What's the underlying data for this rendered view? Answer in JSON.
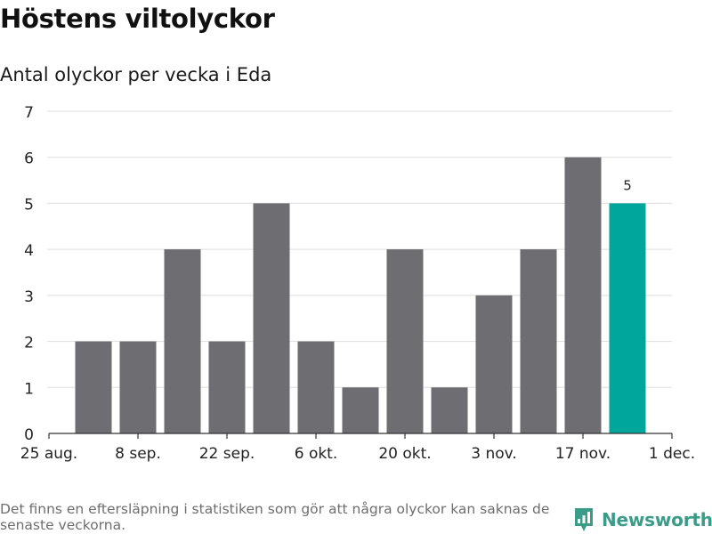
{
  "header": {
    "title": "Höstens viltolyckor",
    "subtitle": "Antal olyckor per vecka i Eda"
  },
  "chart_data": {
    "type": "bar",
    "title": "Höstens viltolyckor",
    "subtitle": "Antal olyckor per vecka i Eda",
    "xlabel": "",
    "ylabel": "",
    "ylim": [
      0,
      7
    ],
    "yticks": [
      0,
      1,
      2,
      3,
      4,
      5,
      6,
      7
    ],
    "xtick_labels": [
      "25 aug.",
      "8 sep.",
      "22 sep.",
      "6 okt.",
      "20 okt.",
      "3 nov.",
      "17 nov.",
      "1 dec."
    ],
    "weeks": [
      "1 sep.",
      "8 sep.",
      "15 sep.",
      "22 sep.",
      "29 sep.",
      "6 okt.",
      "13 okt.",
      "20 okt.",
      "27 okt.",
      "3 nov.",
      "10 nov.",
      "17 nov.",
      "24 nov."
    ],
    "values": [
      2,
      2,
      4,
      2,
      5,
      2,
      1,
      4,
      1,
      3,
      4,
      6,
      5
    ],
    "highlight_index": 12,
    "highlight_label": "5",
    "grid": true,
    "colors": {
      "bar": "#6e6d72",
      "highlight": "#00a59b",
      "grid": "#dddddd",
      "axis": "#333333"
    }
  },
  "footer": {
    "note": "Det finns en eftersläpning i statistiken som gör att några olyckor kan saknas de senaste veckorna.",
    "brand": "Newsworthy",
    "brand_color": "#3a9c89"
  }
}
